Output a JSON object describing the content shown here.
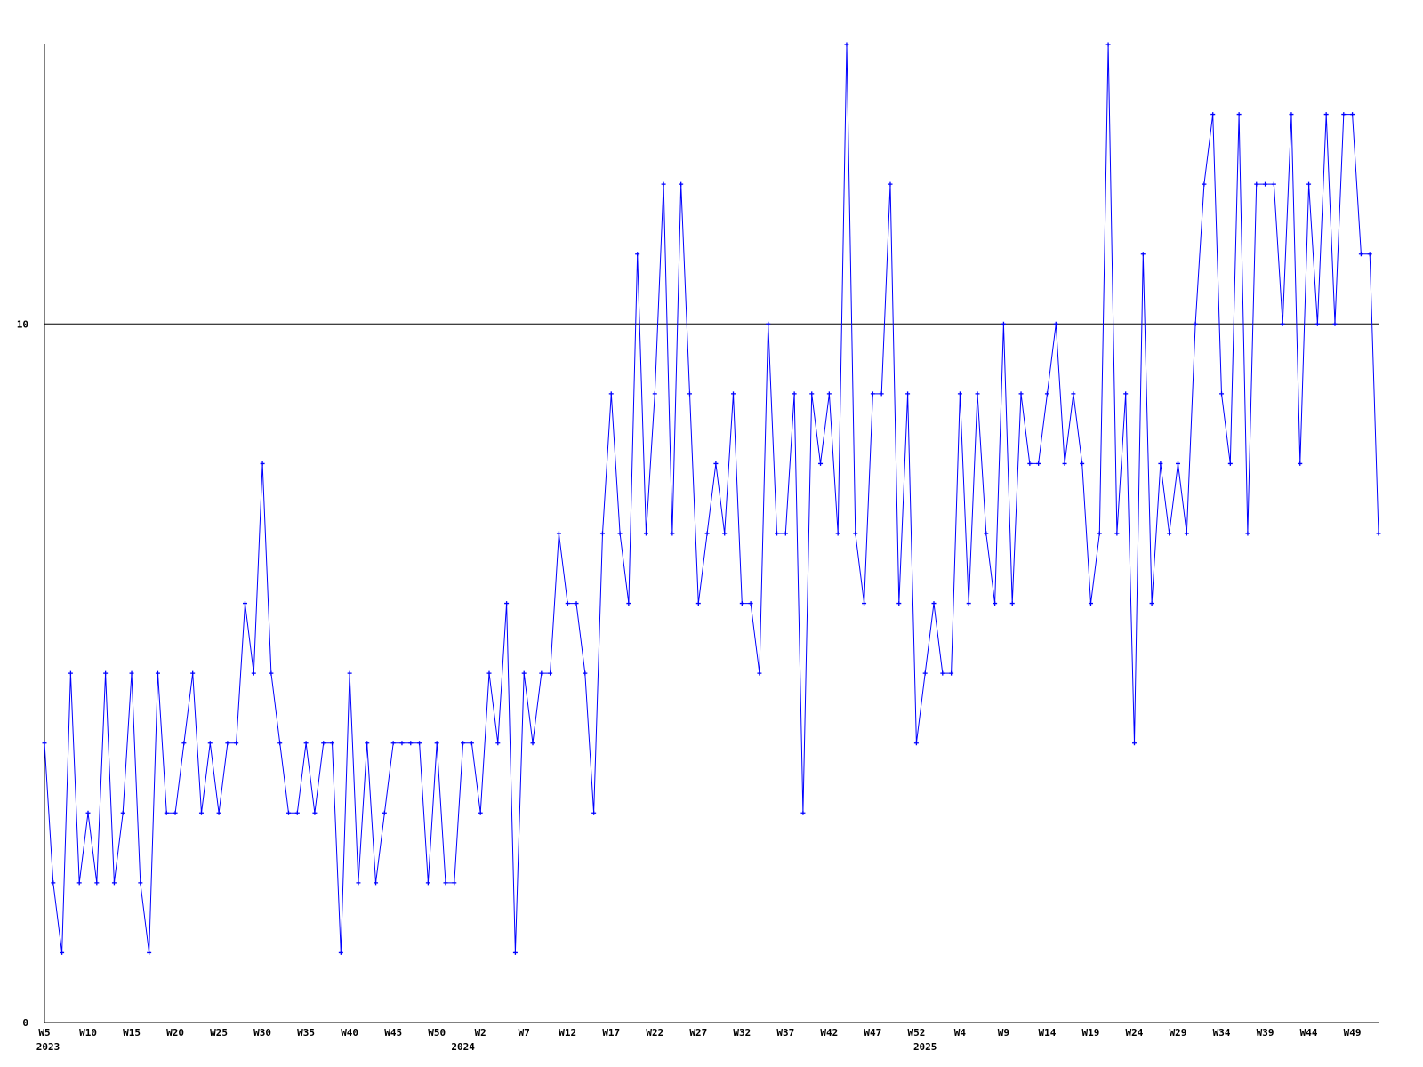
{
  "chart_data": {
    "type": "line",
    "title": "",
    "xlabel": "",
    "ylabel": "",
    "ylim": [
      0,
      14
    ],
    "y_ticks": [
      0,
      10
    ],
    "y_tick_labels": [
      "0",
      "10"
    ],
    "grid": "horizontal line at 10 only",
    "legend": "none",
    "colors": {
      "line": "#0000ff",
      "axis": "#000000"
    },
    "x_tick_labels": [
      {
        "index": 0,
        "label": "W5"
      },
      {
        "index": 5,
        "label": "W10"
      },
      {
        "index": 10,
        "label": "W15"
      },
      {
        "index": 15,
        "label": "W20"
      },
      {
        "index": 20,
        "label": "W25"
      },
      {
        "index": 25,
        "label": "W30"
      },
      {
        "index": 30,
        "label": "W35"
      },
      {
        "index": 35,
        "label": "W40"
      },
      {
        "index": 40,
        "label": "W45"
      },
      {
        "index": 45,
        "label": "W50"
      },
      {
        "index": 50,
        "label": "W2"
      },
      {
        "index": 55,
        "label": "W7"
      },
      {
        "index": 60,
        "label": "W12"
      },
      {
        "index": 65,
        "label": "W17"
      },
      {
        "index": 70,
        "label": "W22"
      },
      {
        "index": 75,
        "label": "W27"
      },
      {
        "index": 80,
        "label": "W32"
      },
      {
        "index": 85,
        "label": "W37"
      },
      {
        "index": 90,
        "label": "W42"
      },
      {
        "index": 95,
        "label": "W47"
      },
      {
        "index": 100,
        "label": "W52"
      },
      {
        "index": 105,
        "label": "W4"
      },
      {
        "index": 110,
        "label": "W9"
      },
      {
        "index": 115,
        "label": "W14"
      },
      {
        "index": 120,
        "label": "W19"
      },
      {
        "index": 125,
        "label": "W24"
      },
      {
        "index": 130,
        "label": "W29"
      },
      {
        "index": 135,
        "label": "W34"
      },
      {
        "index": 140,
        "label": "W39"
      },
      {
        "index": 145,
        "label": "W44"
      },
      {
        "index": 150,
        "label": "W49"
      }
    ],
    "year_labels": [
      {
        "index": 0,
        "label": "2023"
      },
      {
        "index": 48,
        "label": "2024"
      },
      {
        "index": 101,
        "label": "2025"
      }
    ],
    "values": [
      4,
      2,
      1,
      5,
      2,
      3,
      2,
      5,
      2,
      3,
      5,
      2,
      1,
      5,
      3,
      3,
      4,
      5,
      3,
      4,
      3,
      4,
      4,
      6,
      5,
      8,
      5,
      4,
      3,
      3,
      4,
      3,
      4,
      4,
      1,
      5,
      2,
      4,
      2,
      3,
      4,
      4,
      4,
      4,
      2,
      4,
      2,
      2,
      4,
      4,
      3,
      5,
      4,
      6,
      1,
      5,
      4,
      5,
      5,
      7,
      6,
      6,
      5,
      3,
      7,
      9,
      7,
      6,
      11,
      7,
      9,
      12,
      7,
      12,
      9,
      6,
      7,
      8,
      7,
      9,
      6,
      6,
      5,
      10,
      7,
      7,
      9,
      3,
      9,
      8,
      9,
      7,
      14,
      7,
      6,
      9,
      9,
      12,
      6,
      9,
      4,
      5,
      6,
      5,
      5,
      9,
      6,
      9,
      7,
      6,
      10,
      6,
      9,
      8,
      8,
      9,
      10,
      8,
      9,
      8,
      6,
      7,
      14,
      7,
      9,
      4,
      11,
      6,
      8,
      7,
      8,
      7,
      10,
      12,
      13,
      9,
      8,
      13,
      7,
      12,
      12,
      12,
      10,
      13,
      8,
      12,
      10,
      13,
      10,
      13,
      13,
      11,
      11,
      7
    ]
  }
}
